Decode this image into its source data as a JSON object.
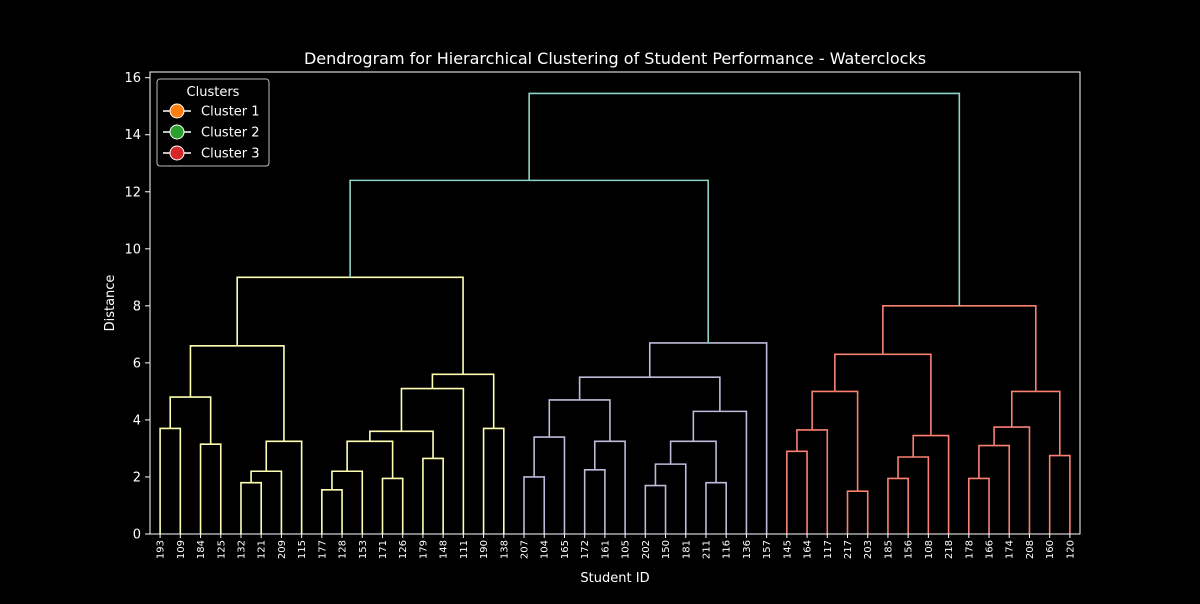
{
  "chart_data": {
    "type": "dendrogram",
    "title": "Dendrogram for Hierarchical Clustering of Student Performance - Waterclocks",
    "xlabel": "Student ID",
    "ylabel": "Distance",
    "ylim": [
      0,
      16.2
    ],
    "yticks": [
      0,
      2,
      4,
      6,
      8,
      10,
      12,
      14,
      16
    ],
    "grid": false,
    "leaves": [
      "193",
      "109",
      "184",
      "125",
      "132",
      "121",
      "209",
      "115",
      "177",
      "128",
      "153",
      "171",
      "126",
      "179",
      "148",
      "111",
      "190",
      "138",
      "207",
      "104",
      "165",
      "172",
      "161",
      "105",
      "202",
      "150",
      "181",
      "211",
      "116",
      "136",
      "157",
      "145",
      "164",
      "117",
      "217",
      "203",
      "185",
      "156",
      "108",
      "218",
      "178",
      "166",
      "174",
      "208",
      "160",
      "120"
    ],
    "merges": [
      {
        "a": 0,
        "b": 1,
        "h": 3.7,
        "color": "#ffffb3"
      },
      {
        "a": 2,
        "b": 3,
        "h": 3.15,
        "color": "#ffffb3"
      },
      {
        "a": "c0",
        "b": "c1",
        "h": 4.8,
        "color": "#ffffb3"
      },
      {
        "a": 4,
        "b": 5,
        "h": 1.8,
        "color": "#ffffb3"
      },
      {
        "a": "c3",
        "b": 6,
        "h": 2.2,
        "color": "#ffffb3"
      },
      {
        "a": "c4",
        "b": 7,
        "h": 3.25,
        "color": "#ffffb3"
      },
      {
        "a": "c2",
        "b": "c5",
        "h": 6.6,
        "color": "#ffffb3"
      },
      {
        "a": 8,
        "b": 9,
        "h": 1.55,
        "color": "#ffffb3"
      },
      {
        "a": "c7",
        "b": 10,
        "h": 2.2,
        "color": "#ffffb3"
      },
      {
        "a": 11,
        "b": 12,
        "h": 1.95,
        "color": "#ffffb3"
      },
      {
        "a": "c8",
        "b": "c9",
        "h": 3.25,
        "color": "#ffffb3"
      },
      {
        "a": 13,
        "b": 14,
        "h": 2.65,
        "color": "#ffffb3"
      },
      {
        "a": "c10",
        "b": "c11",
        "h": 3.6,
        "color": "#ffffb3"
      },
      {
        "a": "c12",
        "b": 15,
        "h": 5.1,
        "color": "#ffffb3"
      },
      {
        "a": 16,
        "b": 17,
        "h": 3.7,
        "color": "#ffffb3"
      },
      {
        "a": "c13",
        "b": "c14",
        "h": 5.6,
        "color": "#ffffb3"
      },
      {
        "a": "c6",
        "b": "c15",
        "h": 9.0,
        "color": "#ffffb3"
      },
      {
        "a": 18,
        "b": 19,
        "h": 2.0,
        "color": "#bebada"
      },
      {
        "a": "c17",
        "b": 20,
        "h": 3.4,
        "color": "#bebada"
      },
      {
        "a": 21,
        "b": 22,
        "h": 2.25,
        "color": "#bebada"
      },
      {
        "a": "c19",
        "b": 23,
        "h": 3.25,
        "color": "#bebada"
      },
      {
        "a": "c18",
        "b": "c20",
        "h": 4.7,
        "color": "#bebada"
      },
      {
        "a": 24,
        "b": 25,
        "h": 1.7,
        "color": "#bebada"
      },
      {
        "a": "c22",
        "b": 26,
        "h": 2.45,
        "color": "#bebada"
      },
      {
        "a": 27,
        "b": 28,
        "h": 1.8,
        "color": "#bebada"
      },
      {
        "a": "c23",
        "b": "c24",
        "h": 3.25,
        "color": "#bebada"
      },
      {
        "a": "c25",
        "b": 29,
        "h": 4.3,
        "color": "#bebada"
      },
      {
        "a": "c21",
        "b": "c26",
        "h": 5.5,
        "color": "#bebada"
      },
      {
        "a": "c27",
        "b": 30,
        "h": 6.7,
        "color": "#bebada"
      },
      {
        "a": "c16",
        "b": "c28",
        "h": 12.4,
        "color": "#8dd3c7"
      },
      {
        "a": 31,
        "b": 32,
        "h": 2.9,
        "color": "#fb8072"
      },
      {
        "a": "c30",
        "b": 33,
        "h": 3.65,
        "color": "#fb8072"
      },
      {
        "a": 34,
        "b": 35,
        "h": 1.5,
        "color": "#fb8072"
      },
      {
        "a": "c31",
        "b": "c32",
        "h": 5.0,
        "color": "#fb8072"
      },
      {
        "a": 36,
        "b": 37,
        "h": 1.95,
        "color": "#fb8072"
      },
      {
        "a": "c34",
        "b": 38,
        "h": 2.7,
        "color": "#fb8072"
      },
      {
        "a": "c35",
        "b": 39,
        "h": 3.45,
        "color": "#fb8072"
      },
      {
        "a": "c33",
        "b": "c36",
        "h": 6.3,
        "color": "#fb8072"
      },
      {
        "a": 40,
        "b": 41,
        "h": 1.95,
        "color": "#fb8072"
      },
      {
        "a": "c38",
        "b": 42,
        "h": 3.1,
        "color": "#fb8072"
      },
      {
        "a": "c39",
        "b": 43,
        "h": 3.75,
        "color": "#fb8072"
      },
      {
        "a": 44,
        "b": 45,
        "h": 2.75,
        "color": "#fb8072"
      },
      {
        "a": "c40",
        "b": "c41",
        "h": 5.0,
        "color": "#fb8072"
      },
      {
        "a": "c37",
        "b": "c42",
        "h": 8.0,
        "color": "#fb8072"
      },
      {
        "a": "c29",
        "b": "c43",
        "h": 15.45,
        "color": "#8dd3c7"
      }
    ],
    "legend": {
      "title": "Clusters",
      "placement": "upper-left",
      "entries": [
        {
          "name": "Cluster 1",
          "color": "#ff7f0e"
        },
        {
          "name": "Cluster 2",
          "color": "#2ca02c"
        },
        {
          "name": "Cluster 3",
          "color": "#d62728"
        }
      ]
    }
  }
}
